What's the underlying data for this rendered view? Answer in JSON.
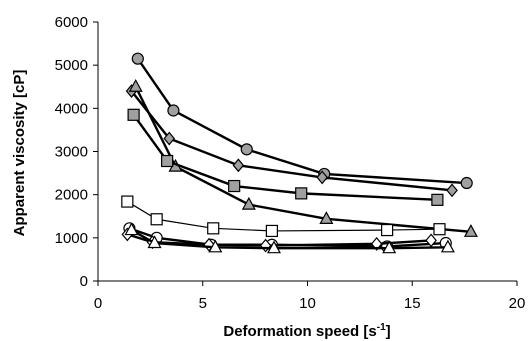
{
  "chart_data": {
    "type": "scatter",
    "xlabel": "Deformation speed [s",
    "xlabel_sup": "-1",
    "xlabel_end": "]",
    "ylabel": "Apparent viscosity [cP]",
    "xlim": [
      0,
      20
    ],
    "ylim": [
      0,
      6000
    ],
    "x_ticks": [
      "0",
      "5",
      "10",
      "15",
      "20"
    ],
    "y_ticks": [
      "0",
      "1000",
      "2000",
      "3000",
      "4000",
      "5000",
      "6000"
    ],
    "grid": false,
    "legend": "none",
    "series": [
      {
        "marker": "circle",
        "fill": "#a0a0a0",
        "line_width": 2.4,
        "x": [
          1.9,
          3.6,
          7.1,
          10.8,
          17.6
        ],
        "y": [
          5150,
          3950,
          3050,
          2480,
          2270
        ]
      },
      {
        "marker": "diamond",
        "fill": "#a0a0a0",
        "line_width": 2.4,
        "x": [
          1.6,
          3.4,
          6.7,
          10.7,
          16.9
        ],
        "y": [
          4400,
          3300,
          2680,
          2400,
          2100
        ]
      },
      {
        "marker": "triangle",
        "fill": "#a0a0a0",
        "line_width": 2.4,
        "x": [
          1.8,
          3.7,
          7.2,
          10.9,
          17.8
        ],
        "y": [
          4500,
          2650,
          1770,
          1440,
          1140
        ]
      },
      {
        "marker": "square",
        "fill": "#a0a0a0",
        "line_width": 2.4,
        "x": [
          1.7,
          3.3,
          6.5,
          9.7,
          16.2
        ],
        "y": [
          3850,
          2780,
          2200,
          2030,
          1880
        ]
      },
      {
        "marker": "square",
        "fill": "#ffffff",
        "line_width": 1.2,
        "x": [
          1.4,
          2.8,
          5.5,
          8.3,
          13.8,
          16.3
        ],
        "y": [
          1840,
          1430,
          1220,
          1160,
          1180,
          1200
        ]
      },
      {
        "marker": "circle",
        "fill": "#ffffff",
        "line_width": 2.4,
        "x": [
          1.5,
          2.8,
          5.4,
          8.3,
          13.8,
          16.6
        ],
        "y": [
          1220,
          1000,
          840,
          840,
          800,
          880
        ]
      },
      {
        "marker": "diamond",
        "fill": "#ffffff",
        "line_width": 2.4,
        "x": [
          1.4,
          2.6,
          5.3,
          8.0,
          13.3,
          15.9
        ],
        "y": [
          1080,
          900,
          840,
          820,
          860,
          940
        ]
      },
      {
        "marker": "triangle",
        "fill": "#ffffff",
        "line_width": 2.4,
        "x": [
          1.6,
          2.7,
          5.6,
          8.4,
          13.9,
          16.7
        ],
        "y": [
          1180,
          880,
          780,
          760,
          760,
          780
        ]
      }
    ]
  }
}
